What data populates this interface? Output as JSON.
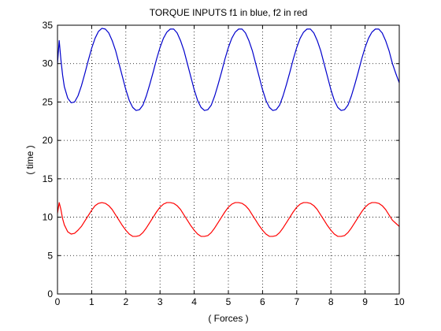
{
  "chart_data": {
    "type": "line",
    "title": "TORQUE INPUTS f1 in blue, f2 in red",
    "xlabel": "( Forces )",
    "ylabel": "( time )",
    "xlim": [
      0,
      10
    ],
    "ylim": [
      0,
      35
    ],
    "xticks": [
      "0",
      "1",
      "2",
      "3",
      "4",
      "5",
      "6",
      "7",
      "8",
      "9",
      "10"
    ],
    "yticks": [
      "0",
      "5",
      "10",
      "15",
      "20",
      "25",
      "30",
      "35"
    ],
    "grid": true,
    "series": [
      {
        "color": "#0000cc",
        "x": [
          0,
          0.05,
          0.1,
          0.15,
          0.2,
          0.3,
          0.4,
          0.5,
          0.6,
          0.7,
          0.8,
          0.9,
          1.0,
          1.1,
          1.2,
          1.3,
          1.4,
          1.5,
          1.6,
          1.7,
          1.8,
          1.9,
          2.0,
          2.1,
          2.2,
          2.3,
          2.4,
          2.5,
          2.6,
          2.7,
          2.8,
          2.9,
          3.0,
          3.1,
          3.2,
          3.3,
          3.4,
          3.5,
          3.6,
          3.7,
          3.8,
          3.9,
          4.0,
          4.1,
          4.2,
          4.3,
          4.4,
          4.5,
          4.6,
          4.7,
          4.8,
          4.9,
          5.0,
          5.1,
          5.2,
          5.3,
          5.4,
          5.5,
          5.6,
          5.7,
          5.8,
          5.9,
          6.0,
          6.1,
          6.2,
          6.3,
          6.4,
          6.5,
          6.6,
          6.7,
          6.8,
          6.9,
          7.0,
          7.1,
          7.2,
          7.3,
          7.4,
          7.5,
          7.6,
          7.7,
          7.8,
          7.9,
          8.0,
          8.1,
          8.2,
          8.3,
          8.4,
          8.5,
          8.6,
          8.7,
          8.8,
          8.9,
          9.0,
          9.1,
          9.2,
          9.3,
          9.4,
          9.5,
          9.6,
          9.7,
          9.8,
          9.9,
          10.0
        ],
        "y": [
          30.0,
          33.0,
          30.5,
          28.5,
          27.0,
          25.5,
          24.9,
          25.0,
          25.8,
          27.1,
          28.7,
          30.4,
          32.0,
          33.3,
          34.2,
          34.6,
          34.5,
          34.0,
          33.0,
          31.7,
          30.0,
          28.3,
          26.6,
          25.2,
          24.3,
          23.9,
          24.0,
          24.6,
          25.8,
          27.3,
          28.9,
          30.6,
          32.1,
          33.3,
          34.1,
          34.5,
          34.5,
          34.0,
          33.0,
          31.7,
          30.0,
          28.3,
          26.6,
          25.2,
          24.3,
          23.9,
          24.0,
          24.6,
          25.8,
          27.3,
          28.9,
          30.6,
          32.1,
          33.3,
          34.1,
          34.5,
          34.5,
          34.0,
          33.0,
          31.7,
          30.0,
          28.3,
          26.6,
          25.2,
          24.3,
          23.9,
          24.0,
          24.6,
          25.8,
          27.3,
          28.9,
          30.6,
          32.1,
          33.3,
          34.1,
          34.5,
          34.5,
          34.0,
          33.0,
          31.7,
          30.0,
          28.3,
          26.6,
          25.2,
          24.3,
          23.9,
          24.0,
          24.6,
          25.8,
          27.3,
          28.9,
          30.6,
          32.1,
          33.3,
          34.1,
          34.5,
          34.5,
          34.0,
          33.0,
          31.7,
          30.0,
          28.7,
          27.5
        ]
      },
      {
        "color": "#ff0000",
        "x": [
          0,
          0.05,
          0.1,
          0.15,
          0.2,
          0.3,
          0.4,
          0.5,
          0.6,
          0.7,
          0.8,
          0.9,
          1.0,
          1.1,
          1.2,
          1.3,
          1.4,
          1.5,
          1.6,
          1.7,
          1.8,
          1.9,
          2.0,
          2.1,
          2.2,
          2.3,
          2.4,
          2.5,
          2.6,
          2.7,
          2.8,
          2.9,
          3.0,
          3.1,
          3.2,
          3.3,
          3.4,
          3.5,
          3.6,
          3.7,
          3.8,
          3.9,
          4.0,
          4.1,
          4.2,
          4.3,
          4.4,
          4.5,
          4.6,
          4.7,
          4.8,
          4.9,
          5.0,
          5.1,
          5.2,
          5.3,
          5.4,
          5.5,
          5.6,
          5.7,
          5.8,
          5.9,
          6.0,
          6.1,
          6.2,
          6.3,
          6.4,
          6.5,
          6.6,
          6.7,
          6.8,
          6.9,
          7.0,
          7.1,
          7.2,
          7.3,
          7.4,
          7.5,
          7.6,
          7.7,
          7.8,
          7.9,
          8.0,
          8.1,
          8.2,
          8.3,
          8.4,
          8.5,
          8.6,
          8.7,
          8.8,
          8.9,
          9.0,
          9.1,
          9.2,
          9.3,
          9.4,
          9.5,
          9.6,
          9.7,
          9.8,
          9.9,
          10.0
        ],
        "y": [
          10.5,
          11.9,
          11.0,
          9.8,
          9.0,
          8.1,
          7.8,
          7.9,
          8.3,
          8.8,
          9.5,
          10.2,
          10.9,
          11.5,
          11.8,
          11.9,
          11.8,
          11.5,
          11.0,
          10.3,
          9.6,
          8.9,
          8.3,
          7.8,
          7.5,
          7.5,
          7.6,
          8.0,
          8.6,
          9.3,
          10.0,
          10.7,
          11.3,
          11.7,
          11.9,
          11.9,
          11.8,
          11.5,
          11.0,
          10.3,
          9.6,
          8.9,
          8.3,
          7.8,
          7.5,
          7.5,
          7.6,
          8.0,
          8.6,
          9.3,
          10.0,
          10.7,
          11.3,
          11.7,
          11.9,
          11.9,
          11.8,
          11.5,
          11.0,
          10.3,
          9.6,
          8.9,
          8.3,
          7.8,
          7.5,
          7.5,
          7.6,
          8.0,
          8.6,
          9.3,
          10.0,
          10.7,
          11.3,
          11.7,
          11.9,
          11.9,
          11.8,
          11.5,
          11.0,
          10.3,
          9.6,
          8.9,
          8.3,
          7.8,
          7.5,
          7.5,
          7.6,
          8.0,
          8.6,
          9.3,
          10.0,
          10.7,
          11.3,
          11.7,
          11.9,
          11.9,
          11.8,
          11.5,
          11.0,
          10.3,
          9.6,
          9.2,
          8.8
        ]
      }
    ]
  }
}
